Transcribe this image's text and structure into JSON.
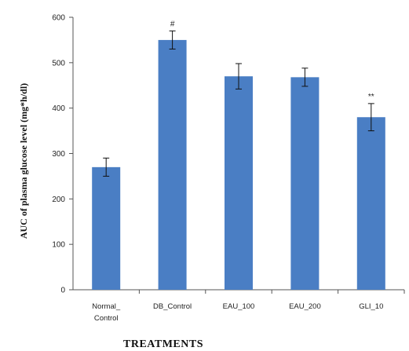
{
  "chart_data": {
    "type": "bar",
    "title": "",
    "ylabel": "AUC of plasma glucose level (mg*h/dl)",
    "xlabel": "TREATMENTS",
    "ylim": [
      0,
      600
    ],
    "yticks": [
      "0",
      "100",
      "200",
      "300",
      "400",
      "500",
      "600"
    ],
    "ytick_values": [
      0,
      100,
      200,
      300,
      400,
      500,
      600
    ],
    "grid": false,
    "bar_color": "#4a7ec4",
    "categories": [
      [
        "Normal_",
        "Control"
      ],
      [
        "DB_Control"
      ],
      [
        "EAU_100"
      ],
      [
        "EAU_200"
      ],
      [
        "GLI_10"
      ]
    ],
    "values": [
      270,
      550,
      470,
      468,
      380
    ],
    "errors": [
      20,
      20,
      28,
      20,
      30
    ],
    "annotations": [
      "",
      "#",
      "",
      "",
      "**"
    ]
  }
}
